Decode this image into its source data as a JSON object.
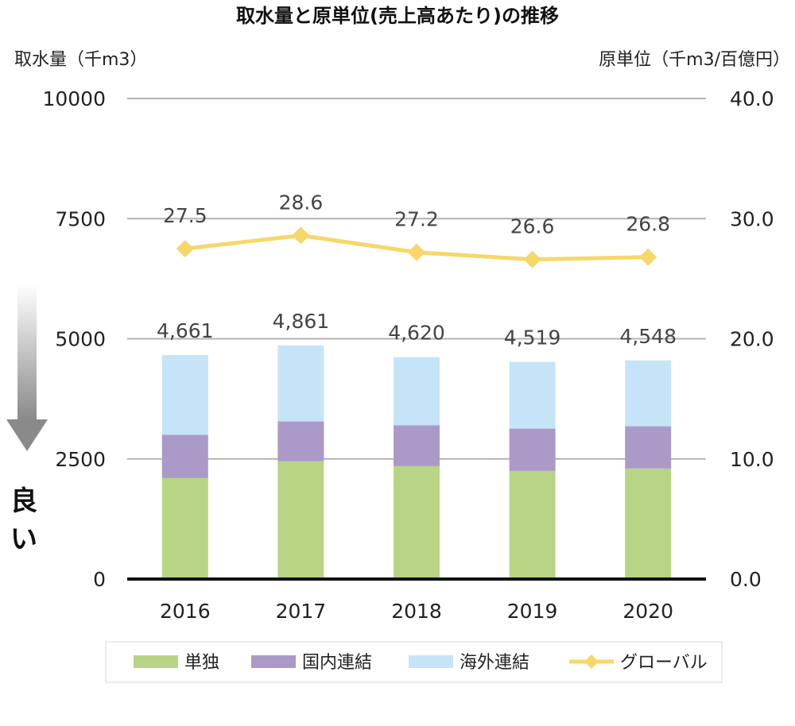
{
  "chart_data": {
    "type": "bar",
    "title": "取水量と原単位(売上高あたり)の推移",
    "y_left_label": "取水量（千m3）",
    "y_right_label": "原単位（千m3/百億円）",
    "categories": [
      "2016",
      "2017",
      "2018",
      "2019",
      "2020"
    ],
    "ylim_left": [
      0,
      10000
    ],
    "ylim_right": [
      0,
      40
    ],
    "y_left_ticks": [
      "0",
      "2500",
      "5000",
      "7500",
      "10000"
    ],
    "y_right_ticks": [
      "0.0",
      "10.0",
      "20.0",
      "30.0",
      "40.0"
    ],
    "stacked": true,
    "grid": true,
    "series": [
      {
        "name": "単独",
        "type": "bar",
        "axis": "left",
        "color": "#b7d584",
        "values": [
          2100,
          2450,
          2350,
          2250,
          2300
        ]
      },
      {
        "name": "国内連結",
        "type": "bar",
        "axis": "left",
        "color": "#ab9ac8",
        "values": [
          900,
          830,
          850,
          880,
          880
        ]
      },
      {
        "name": "海外連結",
        "type": "bar",
        "axis": "left",
        "color": "#c5e4f7",
        "values": [
          1661,
          1581,
          1420,
          1389,
          1368
        ]
      },
      {
        "name": "グローバル",
        "type": "line",
        "axis": "right",
        "color": "#f7d76a",
        "values": [
          27.5,
          28.6,
          27.2,
          26.6,
          26.8
        ]
      }
    ],
    "totals": [
      4661,
      4861,
      4620,
      4519,
      4548
    ],
    "total_labels": [
      "4,661",
      "4,861",
      "4,620",
      "4,519",
      "4,548"
    ],
    "line_labels": [
      "27.5",
      "28.6",
      "27.2",
      "26.6",
      "26.8"
    ],
    "annotation": "良い",
    "legend_position": "bottom"
  }
}
